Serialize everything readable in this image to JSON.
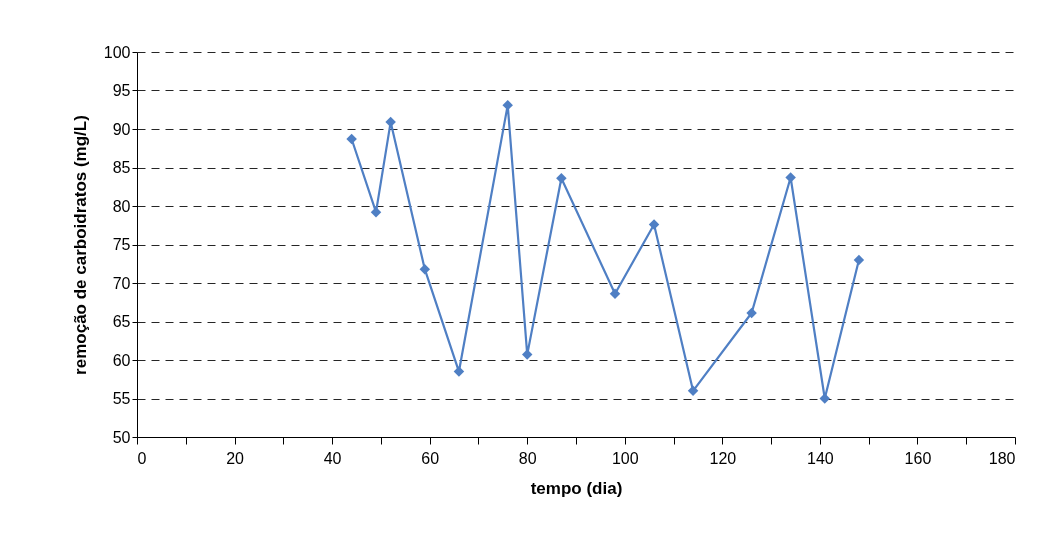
{
  "chart_data": {
    "type": "line",
    "xlabel": "tempo (dia)",
    "ylabel": "remoção de carboidratos (mg/L)",
    "x": [
      44,
      49,
      52,
      59,
      66,
      76,
      80,
      87,
      98,
      106,
      114,
      126,
      134,
      141,
      148
    ],
    "series": [
      {
        "color": "#4f7fc4",
        "values": [
          88.7,
          79.2,
          90.9,
          71.8,
          58.5,
          93.1,
          60.7,
          83.6,
          68.6,
          77.6,
          56.0,
          66.1,
          83.7,
          55.0,
          73.0
        ]
      }
    ],
    "xlim": [
      0,
      180
    ],
    "xticks": [
      0,
      {
        "value": 10,
        "label": null
      },
      20,
      {
        "value": 30,
        "label": null
      },
      40,
      {
        "value": 50,
        "label": null
      },
      60,
      {
        "value": 70,
        "label": null
      },
      80,
      {
        "value": 90,
        "label": null
      },
      100,
      {
        "value": 110,
        "label": null
      },
      120,
      {
        "value": 130,
        "label": null
      },
      140,
      {
        "value": 150,
        "label": null
      },
      160,
      {
        "value": 170,
        "label": null
      },
      180
    ],
    "ylim": [
      50,
      100
    ],
    "yticks": [
      50,
      55,
      60,
      65,
      70,
      75,
      80,
      85,
      90,
      95,
      100
    ],
    "grid": "y",
    "marker": "diamond",
    "line_style": "solid"
  }
}
